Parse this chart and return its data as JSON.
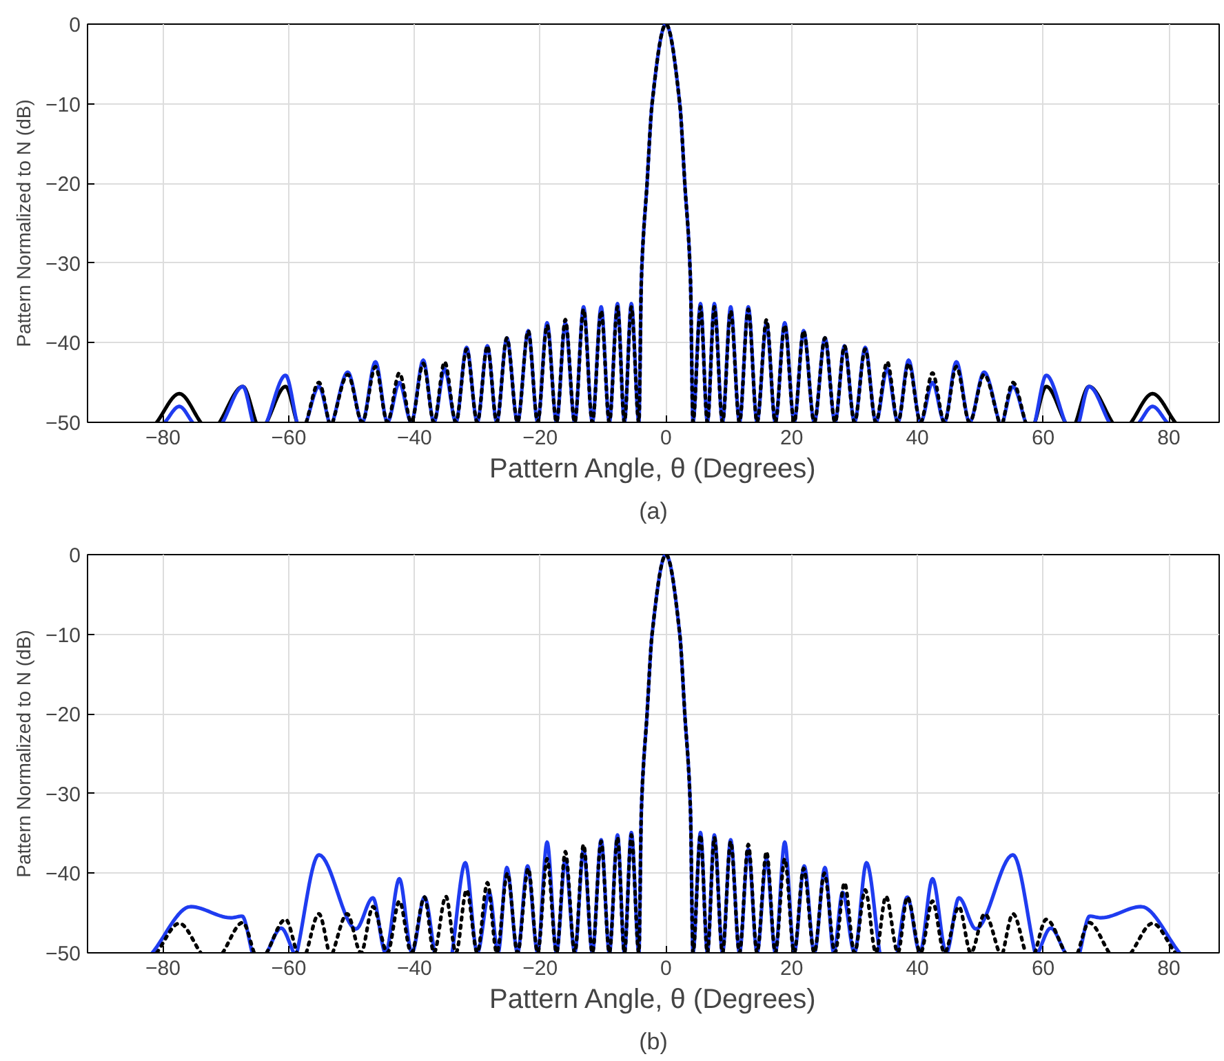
{
  "chart_data": [
    {
      "type": "line",
      "xlabel": "Pattern Angle, θ (Degrees)",
      "ylabel": "Pattern Normalized to N (dB)",
      "annotations": [
        "(a)"
      ],
      "xlim": [
        -92,
        88
      ],
      "ylim": [
        -50,
        0
      ],
      "xticks": [
        -80,
        -60,
        -40,
        -20,
        0,
        20,
        40,
        60,
        80
      ],
      "yticks": [
        -50,
        -40,
        -30,
        -20,
        -10,
        0
      ],
      "grid": true,
      "series": [
        {
          "color": "#000000",
          "line_style": "solid",
          "x": [
            -81,
            -77.4,
            -74,
            -72.5,
            -71,
            -67.3,
            -65.2,
            -64.4,
            -63.5,
            -60.5,
            -58.7,
            0,
            58.7,
            60.5,
            63.5,
            64.4,
            65.2,
            67.3,
            71,
            72.5,
            74,
            77.4,
            81
          ],
          "values": [
            -50,
            -46.4,
            -50,
            null,
            -50,
            -45.5,
            -50,
            null,
            -50,
            -45.5,
            -50,
            null,
            -50,
            -45.5,
            -50,
            null,
            -50,
            -45.5,
            -50,
            null,
            -50,
            -46.4,
            -50
          ]
        },
        {
          "color": "#1f3cf0",
          "line_style": "solid",
          "x": [
            -79.7,
            -77.4,
            -75.3,
            -73,
            -70.5,
            -67.3,
            -65.7,
            -64.6,
            -63.5,
            -60.5,
            -58.7,
            -58.0,
            -57.2,
            -55.2,
            -53.6,
            -53.3,
            -53.0,
            -50.6,
            -48.3,
            -46.2,
            -44.3,
            -42.4,
            -40.5,
            -38.6,
            -36.9,
            -35.2,
            -33.4,
            -31.7,
            -30.0,
            -28.4,
            -26.9,
            -25.3,
            -23.6,
            -21.9,
            -20.4,
            -18.9,
            -17.4,
            -16.0,
            -14.5,
            -13.1,
            -11.7,
            -10.3,
            -9.0,
            -7.7,
            -6.6,
            -5.5,
            -4.3,
            -3.9,
            -3.0,
            -2.2,
            0,
            2.2,
            3.0,
            3.9,
            4.3,
            5.5,
            6.6,
            7.7,
            9.0,
            10.3,
            11.7,
            13.1,
            14.5,
            16.0,
            17.4,
            18.9,
            20.4,
            21.9,
            23.6,
            25.3,
            26.9,
            28.4,
            30.0,
            31.7,
            33.4,
            35.2,
            36.9,
            38.6,
            40.5,
            42.4,
            44.3,
            46.2,
            48.3,
            50.6,
            53.0,
            53.3,
            53.6,
            55.2,
            57.2,
            58.0,
            58.7,
            60.5,
            63.5,
            64.6,
            65.7,
            67.3,
            70.5,
            73,
            75.3,
            77.4,
            79.7
          ],
          "values": [
            -50,
            -48.0,
            -50,
            null,
            -50,
            -45.5,
            -50,
            null,
            -50,
            -44.1,
            -50,
            null,
            -50,
            -45.5,
            -50,
            null,
            -50,
            -43.7,
            -50,
            -42.4,
            -50,
            -45.0,
            -50,
            -42.2,
            -50,
            -43.3,
            -50,
            -40.6,
            -50,
            -40.4,
            -50,
            -39.4,
            -50,
            -38.5,
            -50,
            -37.5,
            -50,
            -37.5,
            -50,
            -35.5,
            -50,
            -35.5,
            -50,
            -35.1,
            -50,
            -35.1,
            -50,
            -32,
            -20,
            -10,
            0,
            -10,
            -20,
            -32,
            -50,
            -35.1,
            -50,
            -35.1,
            -50,
            -35.5,
            -50,
            -35.5,
            -50,
            -37.5,
            -50,
            -37.5,
            -50,
            -38.5,
            -50,
            -39.4,
            -50,
            -40.4,
            -50,
            -40.6,
            -50,
            -43.3,
            -50,
            -42.2,
            -50,
            -45.0,
            -50,
            -42.4,
            -50,
            -43.7,
            -50,
            null,
            -50,
            -45.5,
            -50,
            null,
            -50,
            -44.1,
            -50,
            null,
            -50,
            -45.5,
            -50,
            null,
            -50,
            -48.0,
            -50
          ]
        },
        {
          "color": "#000000",
          "line_style": "dotted",
          "x": [
            -57.2,
            -55.2,
            -53.6,
            -53.3,
            -53.0,
            -50.6,
            -48.3,
            -46.2,
            -44.3,
            -42.4,
            -40.5,
            -38.6,
            -36.9,
            -35.2,
            -33.4,
            -31.7,
            -30.0,
            -28.4,
            -26.9,
            -25.3,
            -23.6,
            -21.9,
            -20.4,
            -18.9,
            -17.4,
            -16.0,
            -14.5,
            -13.1,
            -11.7,
            -10.3,
            -9.0,
            -7.7,
            -6.6,
            -5.5,
            -4.3,
            -3.9,
            -3.0,
            -2.2,
            0,
            2.2,
            3.0,
            3.9,
            4.3,
            5.5,
            6.6,
            7.7,
            9.0,
            10.3,
            11.7,
            13.1,
            14.5,
            16.0,
            17.4,
            18.9,
            20.4,
            21.9,
            23.6,
            25.3,
            26.9,
            28.4,
            30.0,
            31.7,
            33.4,
            35.2,
            36.9,
            38.6,
            40.5,
            42.4,
            44.3,
            46.2,
            48.3,
            50.6,
            53.0,
            53.3,
            53.6,
            55.2,
            57.2
          ],
          "values": [
            -50,
            -45.0,
            -50,
            null,
            -50,
            -44.0,
            -50,
            -43.0,
            -50,
            -43.8,
            -50,
            -42.6,
            -50,
            -42.4,
            -50,
            -40.8,
            -50,
            -40.4,
            -50,
            -39.4,
            -50,
            -38.5,
            -50,
            -37.8,
            -50,
            -37.1,
            -50,
            -35.8,
            -50,
            -36.0,
            -50,
            -35.5,
            -50,
            -35.5,
            -50,
            -32,
            -20,
            -10,
            0,
            -10,
            -20,
            -32,
            -50,
            -35.5,
            -50,
            -35.5,
            -50,
            -36.0,
            -50,
            -35.8,
            -50,
            -37.1,
            -50,
            -37.8,
            -50,
            -38.5,
            -50,
            -39.4,
            -50,
            -40.4,
            -50,
            -40.8,
            -50,
            -42.4,
            -50,
            -42.6,
            -50,
            -43.8,
            -50,
            -43.0,
            -50,
            -44.0,
            -50,
            null,
            -50,
            -45.0,
            -50
          ]
        }
      ]
    },
    {
      "type": "line",
      "xlabel": "Pattern Angle, θ (Degrees)",
      "ylabel": "Pattern Normalized to N (dB)",
      "annotations": [
        "(b)"
      ],
      "xlim": [
        -92,
        88
      ],
      "ylim": [
        -50,
        0
      ],
      "xticks": [
        -80,
        -60,
        -40,
        -20,
        0,
        20,
        40,
        60,
        80
      ],
      "yticks": [
        -50,
        -40,
        -30,
        -20,
        -10,
        0
      ],
      "grid": true,
      "series": [
        {
          "color": "#1f3cf0",
          "line_style": "solid",
          "x": [
            -81.7,
            -75.6,
            -69.2,
            -67.4,
            -65.8,
            -64.6,
            -63.5,
            -61.2,
            -59.2,
            -59.0,
            -58.7,
            -55.2,
            -49.3,
            -46.6,
            -44.6,
            -42.4,
            -40.4,
            -38.4,
            -36.8,
            -35.4,
            -34.0,
            -31.9,
            -30.0,
            -28.1,
            -26.7,
            -25.3,
            -23.6,
            -22.0,
            -20.4,
            -18.9,
            -17.4,
            -16.0,
            -14.5,
            -13.1,
            -11.7,
            -10.3,
            -9.0,
            -7.7,
            -6.6,
            -5.5,
            -4.3,
            -3.9,
            -3.0,
            -2.2,
            0,
            2.2,
            3.0,
            3.9,
            4.3,
            5.5,
            6.6,
            7.7,
            9.0,
            10.3,
            11.7,
            13.1,
            14.5,
            16.0,
            17.4,
            18.9,
            20.4,
            22.0,
            23.6,
            25.3,
            26.7,
            28.1,
            30.0,
            31.9,
            34.0,
            35.4,
            36.8,
            38.4,
            40.4,
            42.4,
            44.6,
            46.6,
            49.3,
            55.2,
            58.7,
            59.0,
            59.2,
            61.2,
            63.5,
            64.6,
            65.8,
            67.4,
            69.2,
            75.6,
            81.7
          ],
          "values": [
            -50,
            -44.2,
            -45.6,
            -45.4,
            -50,
            null,
            -50,
            -46.9,
            -50,
            null,
            -50,
            -37.7,
            -47.0,
            -43.1,
            -50,
            -40.7,
            -50,
            -43.0,
            -50,
            null,
            -50,
            -38.7,
            -50,
            -42.4,
            -50,
            -39.3,
            -50,
            -39.1,
            -50,
            -36.1,
            -50,
            -38.2,
            -50,
            -37.0,
            -50,
            -35.8,
            -50,
            -35.2,
            -50,
            -34.9,
            -50,
            -32,
            -20,
            -10,
            0,
            -10,
            -20,
            -32,
            -50,
            -34.9,
            -50,
            -35.2,
            -50,
            -35.8,
            -50,
            -37.0,
            -50,
            -38.2,
            -50,
            -36.1,
            -50,
            -39.1,
            -50,
            -39.3,
            -50,
            -42.4,
            -50,
            -38.7,
            -50,
            null,
            -50,
            -43.0,
            -50,
            -40.7,
            -50,
            -43.1,
            -47.0,
            -37.7,
            -50,
            null,
            -50,
            -46.9,
            -50,
            null,
            -50,
            -45.4,
            -45.6,
            -44.2,
            -50
          ]
        },
        {
          "color": "#000000",
          "line_style": "dotted",
          "x": [
            -81.0,
            -77.4,
            -74.0,
            -72.3,
            -70.5,
            -67.3,
            -65.5,
            -64.5,
            -63.5,
            -60.5,
            -58.7,
            -58.0,
            -57.2,
            -55.2,
            -53.6,
            -53.3,
            -53.0,
            -50.7,
            -48.5,
            -46.6,
            -44.3,
            -42.4,
            -40.5,
            -38.4,
            -36.9,
            -35.0,
            -33.4,
            -31.7,
            -30.0,
            -28.4,
            -26.9,
            -25.2,
            -23.6,
            -21.9,
            -20.4,
            -18.9,
            -17.4,
            -16.0,
            -14.5,
            -13.1,
            -11.7,
            -10.3,
            -9.0,
            -7.7,
            -6.6,
            -5.5,
            -4.3,
            -3.9,
            -3.0,
            -2.2,
            0,
            2.2,
            3.0,
            3.9,
            4.3,
            5.5,
            6.6,
            7.7,
            9.0,
            10.3,
            11.7,
            13.1,
            14.5,
            16.0,
            17.4,
            18.9,
            20.4,
            21.9,
            23.6,
            25.2,
            26.9,
            28.4,
            30.0,
            31.7,
            33.4,
            35.0,
            36.9,
            38.4,
            40.5,
            42.4,
            44.3,
            46.6,
            48.5,
            50.7,
            53.0,
            53.3,
            53.6,
            55.2,
            57.2,
            58.0,
            58.7,
            60.5,
            63.5,
            64.5,
            65.5,
            67.3,
            70.5,
            72.3,
            74.0,
            77.4,
            81.0
          ],
          "values": [
            -50,
            -46.3,
            -50,
            null,
            -50,
            -46.2,
            -50,
            null,
            -50,
            -45.8,
            -50,
            null,
            -50,
            -45.1,
            -50,
            null,
            -50,
            -45.1,
            -50,
            -44.2,
            -50,
            -43.5,
            -50,
            -43.0,
            -50,
            -42.9,
            -50,
            -42.1,
            -50,
            -41.2,
            -50,
            -40.0,
            -50,
            -39.4,
            -50,
            -38.2,
            -50,
            -37.3,
            -50,
            -36.4,
            -50,
            -36.0,
            -50,
            -35.5,
            -50,
            -35.2,
            -50,
            -32,
            -20,
            -10,
            0,
            -10,
            -20,
            -32,
            -50,
            -35.2,
            -50,
            -35.5,
            -50,
            -36.0,
            -50,
            -36.4,
            -50,
            -37.3,
            -50,
            -38.2,
            -50,
            -39.4,
            -50,
            -40.0,
            -50,
            -41.2,
            -50,
            -42.1,
            -50,
            -42.9,
            -50,
            -43.0,
            -50,
            -43.5,
            -50,
            -44.2,
            -50,
            -45.1,
            -50,
            null,
            -50,
            -45.1,
            -50,
            null,
            -50,
            -45.8,
            -50,
            null,
            -50,
            -46.2,
            -50,
            null,
            -50,
            -46.3,
            -50
          ]
        }
      ]
    }
  ]
}
